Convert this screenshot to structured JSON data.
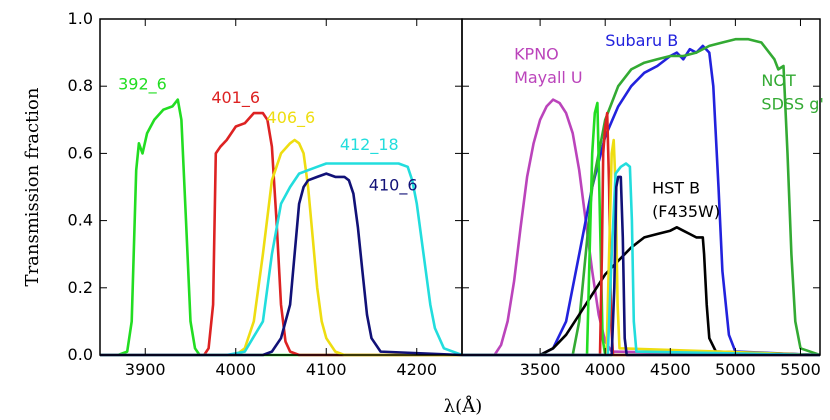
{
  "chart_data": [
    {
      "type": "line",
      "panel": "left",
      "ylabel": "Transmission fraction",
      "xlim": [
        3850,
        4250
      ],
      "ylim": [
        0.0,
        1.0
      ],
      "xticks": [
        3900,
        4000,
        4100,
        4200
      ],
      "yticks": [
        0.0,
        0.2,
        0.4,
        0.6,
        0.8,
        1.0
      ],
      "ytick_labels": [
        "0.0",
        "0.2",
        "0.4",
        "0.6",
        "0.8",
        "1.0"
      ],
      "series": [
        {
          "name": "392_6",
          "color": "#22dd22",
          "x": [
            3850,
            3870,
            3880,
            3885,
            3890,
            3893,
            3897,
            3902,
            3910,
            3920,
            3930,
            3936,
            3940,
            3945,
            3950,
            3955,
            3960,
            3970,
            4250
          ],
          "y": [
            0,
            0,
            0.01,
            0.1,
            0.55,
            0.63,
            0.6,
            0.66,
            0.7,
            0.73,
            0.74,
            0.76,
            0.7,
            0.4,
            0.1,
            0.02,
            0,
            0,
            0
          ]
        },
        {
          "name": "401_6",
          "color": "#dd2222",
          "x": [
            3850,
            3965,
            3970,
            3975,
            3978,
            3983,
            3990,
            4000,
            4010,
            4020,
            4030,
            4035,
            4040,
            4045,
            4050,
            4055,
            4060,
            4070,
            4250
          ],
          "y": [
            0,
            0,
            0.02,
            0.15,
            0.6,
            0.62,
            0.64,
            0.68,
            0.69,
            0.72,
            0.72,
            0.7,
            0.62,
            0.4,
            0.15,
            0.04,
            0.01,
            0,
            0
          ]
        },
        {
          "name": "406_6",
          "color": "#eedd11",
          "x": [
            3850,
            4000,
            4010,
            4020,
            4030,
            4040,
            4050,
            4060,
            4065,
            4070,
            4075,
            4080,
            4085,
            4090,
            4095,
            4100,
            4110,
            4120,
            4250
          ],
          "y": [
            0,
            0,
            0.02,
            0.1,
            0.3,
            0.52,
            0.6,
            0.63,
            0.64,
            0.63,
            0.6,
            0.5,
            0.35,
            0.2,
            0.1,
            0.05,
            0.01,
            0,
            0
          ]
        },
        {
          "name": "412_18",
          "color": "#22dddd",
          "x": [
            3850,
            3990,
            4010,
            4030,
            4040,
            4050,
            4060,
            4070,
            4080,
            4090,
            4100,
            4120,
            4140,
            4160,
            4180,
            4190,
            4195,
            4200,
            4205,
            4210,
            4215,
            4220,
            4230,
            4250
          ],
          "y": [
            0,
            0,
            0.01,
            0.1,
            0.3,
            0.45,
            0.5,
            0.54,
            0.55,
            0.56,
            0.57,
            0.57,
            0.57,
            0.57,
            0.57,
            0.56,
            0.52,
            0.45,
            0.35,
            0.25,
            0.15,
            0.08,
            0.02,
            0
          ]
        },
        {
          "name": "410_6",
          "color": "#111177",
          "x": [
            3850,
            4030,
            4040,
            4050,
            4060,
            4065,
            4070,
            4075,
            4080,
            4090,
            4100,
            4110,
            4120,
            4125,
            4130,
            4135,
            4140,
            4145,
            4150,
            4160,
            4250
          ],
          "y": [
            0,
            0,
            0.01,
            0.05,
            0.15,
            0.3,
            0.45,
            0.5,
            0.52,
            0.53,
            0.54,
            0.53,
            0.53,
            0.52,
            0.48,
            0.38,
            0.25,
            0.12,
            0.05,
            0.01,
            0
          ]
        }
      ],
      "annotations": [
        {
          "text": "392_6",
          "x": 3870,
          "y": 0.79,
          "color": "#22dd22"
        },
        {
          "text": "401_6",
          "x": 3973,
          "y": 0.75,
          "color": "#dd2222"
        },
        {
          "text": "406_6",
          "x": 4034,
          "y": 0.69,
          "color": "#eedd11"
        },
        {
          "text": "412_18",
          "x": 4115,
          "y": 0.61,
          "color": "#22dddd"
        },
        {
          "text": "410_6",
          "x": 4147,
          "y": 0.49,
          "color": "#111177"
        }
      ]
    },
    {
      "type": "line",
      "panel": "right",
      "xlim": [
        2900,
        5650
      ],
      "ylim": [
        0.0,
        1.0
      ],
      "xticks": [
        3500,
        4000,
        4500,
        5000,
        5500
      ],
      "series": [
        {
          "name": "KPNO Mayall U",
          "color": "#bb44bb",
          "x": [
            2900,
            3150,
            3200,
            3250,
            3300,
            3350,
            3400,
            3450,
            3500,
            3550,
            3600,
            3650,
            3700,
            3750,
            3800,
            3850,
            3900,
            3950,
            4000,
            4050,
            5650
          ],
          "y": [
            0,
            0,
            0.03,
            0.1,
            0.22,
            0.38,
            0.53,
            0.63,
            0.7,
            0.74,
            0.76,
            0.75,
            0.72,
            0.66,
            0.55,
            0.4,
            0.25,
            0.12,
            0.04,
            0.01,
            0
          ]
        },
        {
          "name": "Subaru B",
          "color": "#2222dd",
          "x": [
            2900,
            3500,
            3600,
            3700,
            3800,
            3900,
            4000,
            4100,
            4200,
            4300,
            4400,
            4500,
            4550,
            4600,
            4650,
            4700,
            4750,
            4800,
            4830,
            4870,
            4900,
            4950,
            5000,
            5650
          ],
          "y": [
            0,
            0,
            0.02,
            0.1,
            0.3,
            0.5,
            0.65,
            0.74,
            0.8,
            0.84,
            0.86,
            0.89,
            0.9,
            0.88,
            0.91,
            0.9,
            0.92,
            0.9,
            0.8,
            0.5,
            0.25,
            0.06,
            0.01,
            0
          ]
        },
        {
          "name": "NOT SDSS g'",
          "color": "#33aa33",
          "x": [
            2900,
            3750,
            3800,
            3850,
            3900,
            3950,
            4000,
            4050,
            4100,
            4200,
            4300,
            4400,
            4500,
            4600,
            4700,
            4800,
            4900,
            5000,
            5100,
            5200,
            5300,
            5330,
            5370,
            5400,
            5430,
            5460,
            5500,
            5650
          ],
          "y": [
            0,
            0,
            0.1,
            0.3,
            0.5,
            0.6,
            0.7,
            0.75,
            0.8,
            0.85,
            0.87,
            0.88,
            0.89,
            0.89,
            0.9,
            0.92,
            0.93,
            0.94,
            0.94,
            0.93,
            0.88,
            0.85,
            0.86,
            0.6,
            0.3,
            0.1,
            0.02,
            0
          ]
        },
        {
          "name": "HST B (F435W)",
          "color": "#000000",
          "x": [
            2900,
            3500,
            3600,
            3700,
            3800,
            3900,
            4000,
            4100,
            4200,
            4300,
            4400,
            4500,
            4550,
            4600,
            4650,
            4700,
            4750,
            4760,
            4780,
            4800,
            4850,
            5650
          ],
          "y": [
            0,
            0,
            0.02,
            0.06,
            0.12,
            0.18,
            0.24,
            0.28,
            0.32,
            0.35,
            0.36,
            0.37,
            0.38,
            0.37,
            0.36,
            0.35,
            0.35,
            0.3,
            0.15,
            0.05,
            0.01,
            0
          ]
        },
        {
          "name": "392_6",
          "color": "#22dd22",
          "x": [
            2900,
            3860,
            3880,
            3900,
            3920,
            3940,
            3960,
            3980,
            4000,
            5650
          ],
          "y": [
            0,
            0,
            0.3,
            0.6,
            0.72,
            0.75,
            0.4,
            0.05,
            0,
            0
          ]
        },
        {
          "name": "401_6",
          "color": "#dd2222",
          "x": [
            2900,
            3960,
            3975,
            3985,
            4000,
            4015,
            4030,
            4045,
            4060,
            5650
          ],
          "y": [
            0,
            0,
            0.3,
            0.6,
            0.68,
            0.72,
            0.5,
            0.1,
            0,
            0
          ]
        },
        {
          "name": "406_6",
          "color": "#eedd11",
          "x": [
            2900,
            4010,
            4030,
            4050,
            4065,
            4080,
            4095,
            4110,
            5650
          ],
          "y": [
            0,
            0,
            0.3,
            0.6,
            0.64,
            0.5,
            0.15,
            0.02,
            0
          ]
        },
        {
          "name": "412_18",
          "color": "#22dddd",
          "x": [
            2900,
            4020,
            4050,
            4080,
            4120,
            4160,
            4190,
            4205,
            4220,
            4240,
            5650
          ],
          "y": [
            0,
            0,
            0.3,
            0.54,
            0.56,
            0.57,
            0.56,
            0.4,
            0.1,
            0.01,
            0
          ]
        },
        {
          "name": "410_6",
          "color": "#111177",
          "x": [
            2900,
            4050,
            4070,
            4085,
            4100,
            4120,
            4135,
            4150,
            4165,
            5650
          ],
          "y": [
            0,
            0,
            0.2,
            0.5,
            0.53,
            0.53,
            0.35,
            0.05,
            0,
            0
          ]
        }
      ],
      "annotations": [
        {
          "text": "KPNO",
          "x": 3300,
          "y": 0.88,
          "color": "#bb44bb"
        },
        {
          "text": "Mayall U",
          "x": 3300,
          "y": 0.81,
          "color": "#bb44bb"
        },
        {
          "text": "Subaru B",
          "x": 4000,
          "y": 0.92,
          "color": "#2222dd"
        },
        {
          "text": "NOT",
          "x": 5200,
          "y": 0.8,
          "color": "#33aa33"
        },
        {
          "text": "SDSS g'",
          "x": 5200,
          "y": 0.73,
          "color": "#33aa33"
        },
        {
          "text": "HST B",
          "x": 4360,
          "y": 0.48,
          "color": "#000000"
        },
        {
          "text": "(F435W)",
          "x": 4360,
          "y": 0.41,
          "color": "#000000"
        }
      ]
    }
  ],
  "xlabel": "λ(Å)"
}
